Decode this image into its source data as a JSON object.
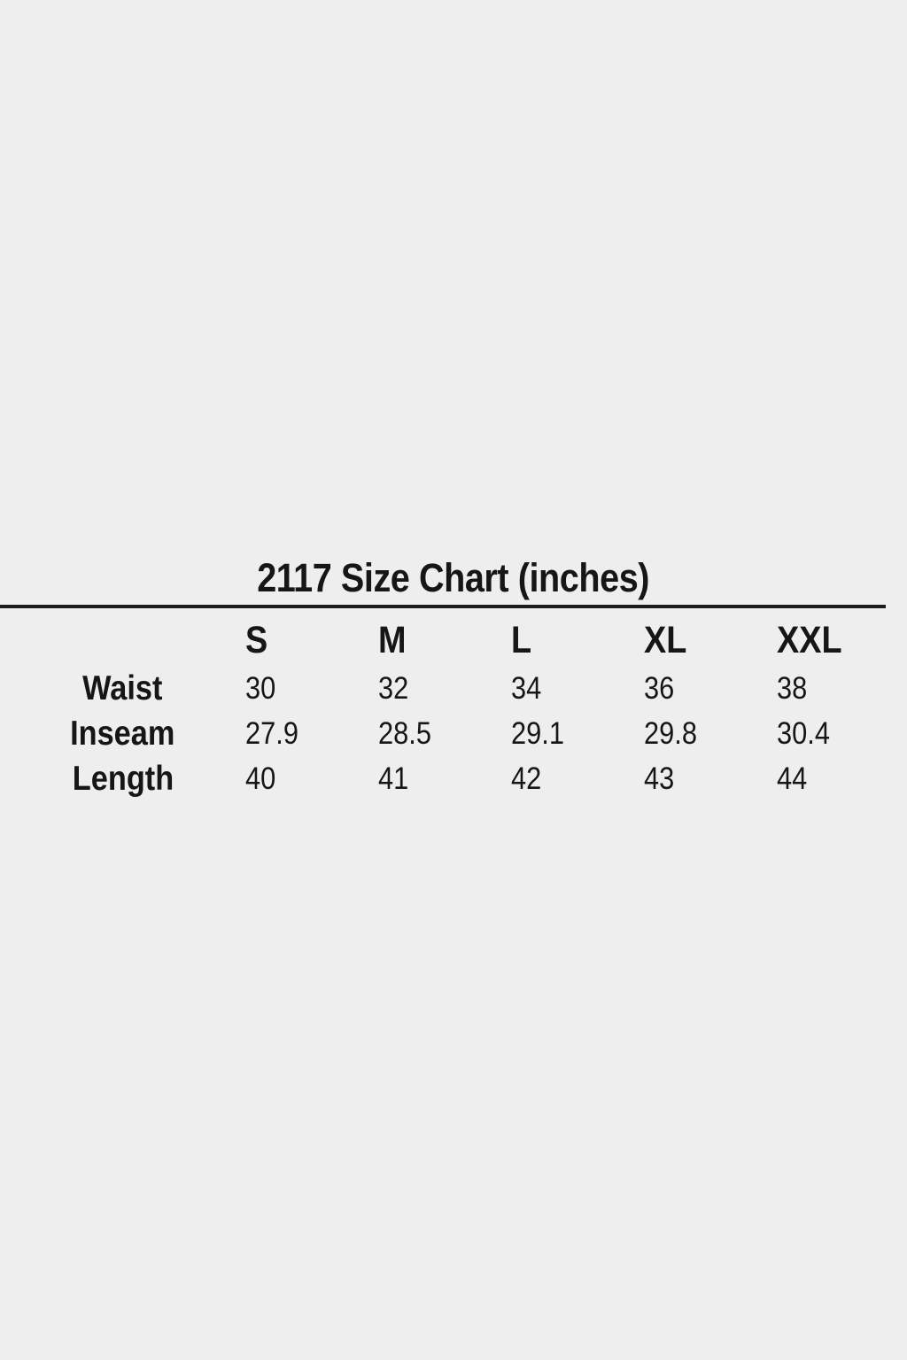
{
  "page": {
    "background_color": "#eeeeee",
    "text_color": "#161616",
    "divider_color": "#1a1a1a"
  },
  "chart_data": {
    "type": "table",
    "title": "2117 Size Chart (inches)",
    "columns": [
      "S",
      "M",
      "L",
      "XL",
      "XXL"
    ],
    "rows": [
      {
        "label": "Waist",
        "values": [
          "30",
          "32",
          "34",
          "36",
          "38"
        ]
      },
      {
        "label": "Inseam",
        "values": [
          "27.9",
          "28.5",
          "29.1",
          "29.8",
          "30.4"
        ]
      },
      {
        "label": "Length",
        "values": [
          "40",
          "41",
          "42",
          "43",
          "44"
        ]
      }
    ],
    "layout": {
      "header_row": true,
      "first_column": "measurement-labels",
      "divider_under_title": true
    }
  }
}
